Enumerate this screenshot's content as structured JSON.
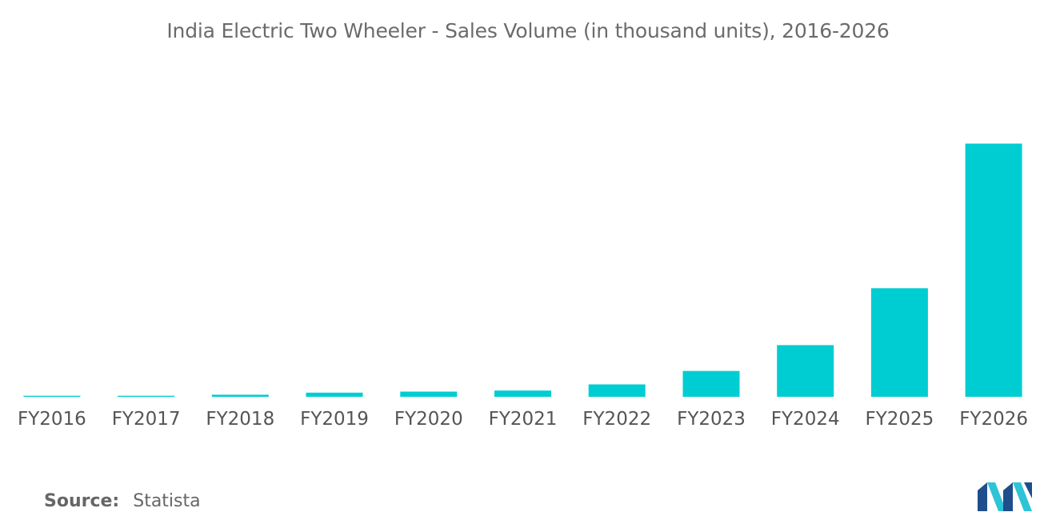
{
  "title": "India Electric Two Wheeler - Sales Volume (in thousand units), 2016-2026",
  "source": {
    "label": "Source:",
    "value": "Statista"
  },
  "logo": {
    "name": "mordor-intelligence-logo",
    "colors": [
      "#1f4e8c",
      "#2ec4d6"
    ]
  },
  "colors": {
    "bar": "#00cdd2",
    "text": "#555555",
    "title": "#6b6b6b"
  },
  "chart_data": {
    "type": "bar",
    "title": "India Electric Two Wheeler - Sales Volume (in thousand units), 2016-2026",
    "xlabel": "",
    "ylabel": "",
    "categories": [
      "FY2016",
      "FY2017",
      "FY2018",
      "FY2019",
      "FY2020",
      "FY2021",
      "FY2022",
      "FY2023",
      "FY2024",
      "FY2025",
      "FY2026"
    ],
    "values": [
      2,
      2,
      4,
      8,
      10,
      12,
      24,
      50,
      100,
      210,
      490
    ],
    "ylim": [
      0,
      500
    ],
    "grid": false,
    "legend": "none"
  }
}
